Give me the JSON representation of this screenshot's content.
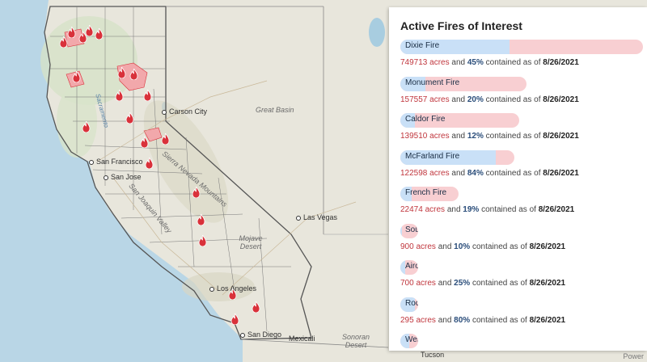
{
  "map": {
    "labels": {
      "carson_city": "Carson City",
      "great_basin": "Great Basin",
      "san_francisco": "San Francisco",
      "san_jose": "San Jose",
      "sacramento_river": "Sacramento",
      "sierra_nevada": "Sierra Nevada Mountains",
      "san_joaquin": "San Joaquin Valley",
      "las_vegas": "Las Vegas",
      "mojave_desert": "Mojave Desert",
      "los_angeles": "Los Angeles",
      "san_diego": "San Diego",
      "mexicali": "Mexicali",
      "sonoran_desert": "Sonoran Desert",
      "tucson": "Tucson"
    },
    "attribution": "Power",
    "colors": {
      "land": "#ecebe3",
      "ocean": "#b9d6e6",
      "fire": "#d9313a",
      "burn_area": "#f2a8ab"
    }
  },
  "panel": {
    "title": "Active Fires of Interest",
    "connector_and": "and",
    "connector_contained": "contained as of",
    "acres_unit": "acres",
    "fires": [
      {
        "name": "Dixie Fire",
        "acres": "749713",
        "contained_pct": "45%",
        "contained_fraction": 0.45,
        "size_fraction": 1.0,
        "date": "8/26/2021"
      },
      {
        "name": "Monument Fire",
        "acres": "157557",
        "contained_pct": "20%",
        "contained_fraction": 0.2,
        "size_fraction": 0.52,
        "date": "8/26/2021"
      },
      {
        "name": "Caldor Fire",
        "acres": "139510",
        "contained_pct": "12%",
        "contained_fraction": 0.12,
        "size_fraction": 0.49,
        "date": "8/26/2021"
      },
      {
        "name": "McFarland Fire",
        "acres": "122598",
        "contained_pct": "84%",
        "contained_fraction": 0.84,
        "size_fraction": 0.47,
        "date": "8/26/2021"
      },
      {
        "name": "French Fire",
        "acres": "22474",
        "contained_pct": "19%",
        "contained_fraction": 0.19,
        "size_fraction": 0.24,
        "date": "8/26/2021"
      },
      {
        "name": "South Fire",
        "acres": "900",
        "contained_pct": "10%",
        "contained_fraction": 0.1,
        "size_fraction": 0.07,
        "date": "8/26/2021"
      },
      {
        "name": "Airola Fire",
        "acres": "700",
        "contained_pct": "25%",
        "contained_fraction": 0.25,
        "size_fraction": 0.07,
        "date": "8/26/2021"
      },
      {
        "name": "Rock Fire",
        "acres": "295",
        "contained_pct": "80%",
        "contained_fraction": 0.8,
        "size_fraction": 0.06,
        "date": "8/26/2021"
      },
      {
        "name": "Westward Fire",
        "acres": "",
        "contained_pct": "",
        "contained_fraction": 0.5,
        "size_fraction": 0.06,
        "date": ""
      }
    ]
  }
}
